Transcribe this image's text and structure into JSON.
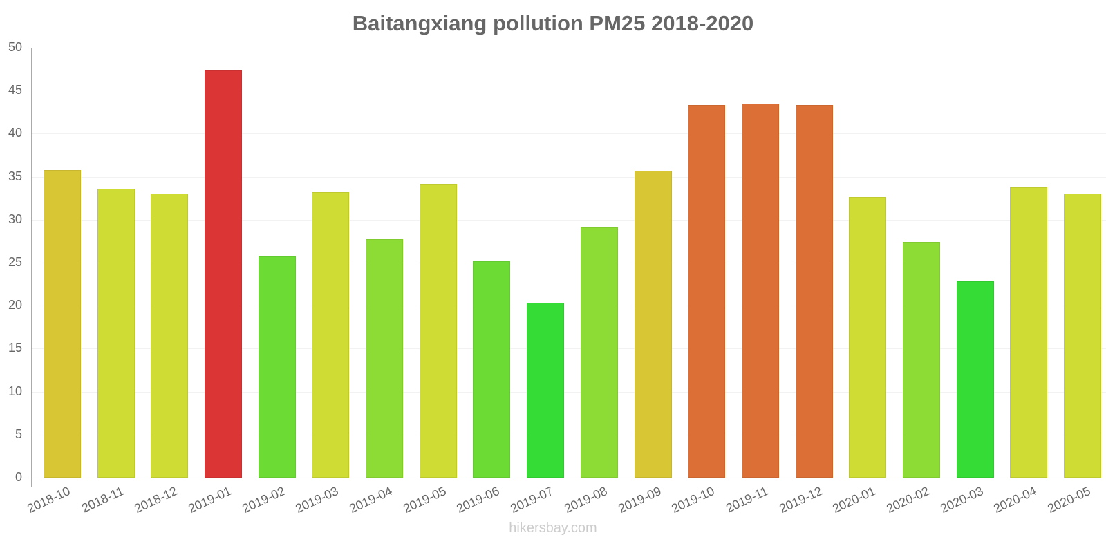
{
  "chart_data": {
    "type": "bar",
    "title": "Baitangxiang pollution PM25 2018-2020",
    "xlabel": "",
    "ylabel": "",
    "ylim": [
      0,
      50
    ],
    "yticks": [
      0,
      5,
      10,
      15,
      20,
      25,
      30,
      35,
      40,
      45,
      50
    ],
    "grid": true,
    "legend": null,
    "categories": [
      "2018-10",
      "2018-11",
      "2018-12",
      "2019-01",
      "2019-02",
      "2019-03",
      "2019-04",
      "2019-05",
      "2019-06",
      "2019-07",
      "2019-08",
      "2019-09",
      "2019-10",
      "2019-11",
      "2019-12",
      "2020-01",
      "2020-02",
      "2020-03",
      "2020-04",
      "2020-05"
    ],
    "values": [
      35.8,
      33.6,
      33.0,
      47.4,
      25.7,
      33.2,
      27.7,
      34.2,
      25.2,
      20.3,
      29.1,
      35.7,
      43.3,
      43.5,
      43.3,
      32.6,
      27.4,
      22.8,
      33.8,
      33.0
    ],
    "colors": [
      "#d8c634",
      "#cfdc33",
      "#cfdc33",
      "#dc3535",
      "#6cdc35",
      "#cfdc33",
      "#8cdc35",
      "#cfdc33",
      "#6cdc35",
      "#35dc35",
      "#8cdc35",
      "#d8c634",
      "#dc6f35",
      "#dc6f35",
      "#dc6f35",
      "#cfdc33",
      "#8cdc35",
      "#35dc35",
      "#cfdc33",
      "#cfdc33"
    ]
  },
  "watermark": "hikersbay.com"
}
